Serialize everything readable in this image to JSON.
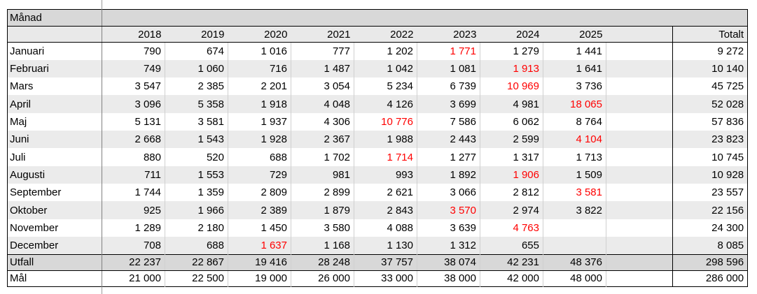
{
  "colors": {
    "red_highlight": "#ff0000",
    "header_bg": "#d8d8d8",
    "subheader_bg": "#e9e9e9",
    "band_bg": "#ebebeb",
    "summary_bg": "#d8d8d8",
    "grid_faint": "#d0d0d0",
    "grid_dark": "#000000",
    "label_divider": "#808080"
  },
  "table": {
    "corner_header": "Månad",
    "year_headers": [
      "2018",
      "2019",
      "2020",
      "2021",
      "2022",
      "2023",
      "2024",
      "2025"
    ],
    "total_header": "Totalt",
    "rows": [
      {
        "label": "Januari",
        "values": [
          "790",
          "674",
          "1 016",
          "777",
          "1 202",
          "1 771",
          "1 279",
          "1 441"
        ],
        "red_index": 5,
        "total": "9 272"
      },
      {
        "label": "Februari",
        "values": [
          "749",
          "1 060",
          "716",
          "1 487",
          "1 042",
          "1 081",
          "1 913",
          "1 641"
        ],
        "red_index": 6,
        "total": "10 140"
      },
      {
        "label": "Mars",
        "values": [
          "3 547",
          "2 385",
          "2 201",
          "3 054",
          "5 234",
          "6 739",
          "10 969",
          "3 736"
        ],
        "red_index": 6,
        "total": "45 725"
      },
      {
        "label": "April",
        "values": [
          "3 096",
          "5 358",
          "1 918",
          "4 048",
          "4 126",
          "3 699",
          "4 981",
          "18 065"
        ],
        "red_index": 7,
        "total": "52 028"
      },
      {
        "label": "Maj",
        "values": [
          "5 131",
          "3 581",
          "1 937",
          "4 306",
          "10 776",
          "7 586",
          "6 062",
          "8 764"
        ],
        "red_index": 4,
        "total": "57 836"
      },
      {
        "label": "Juni",
        "values": [
          "2 668",
          "1 543",
          "1 928",
          "2 367",
          "1 988",
          "2 443",
          "2 599",
          "4 104"
        ],
        "red_index": 7,
        "total": "23 823"
      },
      {
        "label": "Juli",
        "values": [
          "880",
          "520",
          "688",
          "1 702",
          "1 714",
          "1 277",
          "1 317",
          "1 713"
        ],
        "red_index": 4,
        "total": "10 745"
      },
      {
        "label": "Augusti",
        "values": [
          "711",
          "1 553",
          "729",
          "981",
          "993",
          "1 892",
          "1 906",
          "1 509"
        ],
        "red_index": 6,
        "total": "10 928"
      },
      {
        "label": "September",
        "values": [
          "1 744",
          "1 359",
          "2 809",
          "2 899",
          "2 621",
          "3 066",
          "2 812",
          "3 581"
        ],
        "red_index": 7,
        "total": "23 557"
      },
      {
        "label": "Oktober",
        "values": [
          "925",
          "1 966",
          "2 389",
          "1 879",
          "2 843",
          "3 570",
          "2 974",
          "3 822"
        ],
        "red_index": 5,
        "total": "22 156"
      },
      {
        "label": "November",
        "values": [
          "1 289",
          "2 180",
          "1 450",
          "3 580",
          "4 088",
          "3 639",
          "4 763",
          ""
        ],
        "red_index": 6,
        "total": "24 300"
      },
      {
        "label": "December",
        "values": [
          "708",
          "688",
          "1 637",
          "1 168",
          "1 130",
          "1 312",
          "655",
          ""
        ],
        "red_index": 2,
        "total": "8 085"
      }
    ],
    "summary_rows": [
      {
        "label": "Utfall",
        "values": [
          "22 237",
          "22 867",
          "19 416",
          "28 248",
          "37 757",
          "38 074",
          "42 231",
          "48 376"
        ],
        "total": "298 596"
      },
      {
        "label": "Mål",
        "values": [
          "21 000",
          "22 500",
          "19 000",
          "26 000",
          "33 000",
          "38 000",
          "42 000",
          "48 000"
        ],
        "total": "286 000"
      }
    ]
  }
}
